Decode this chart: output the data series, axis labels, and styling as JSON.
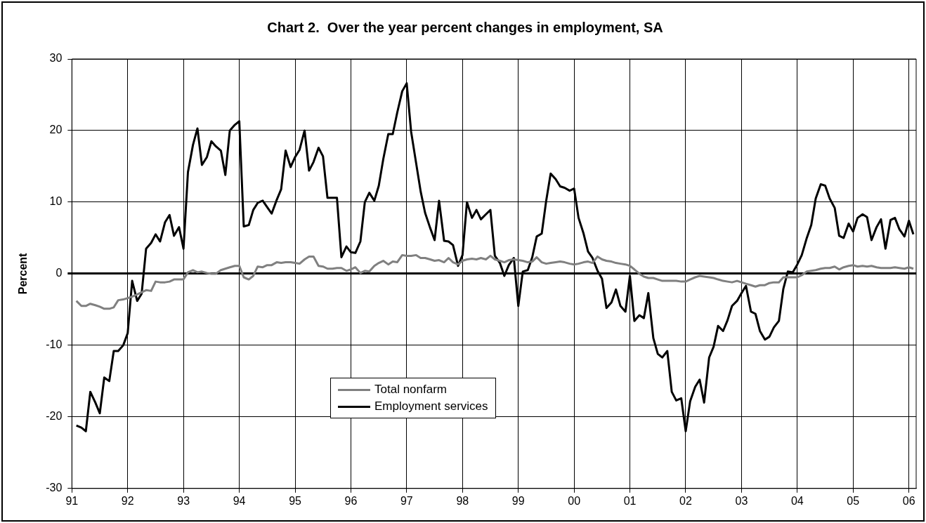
{
  "chart_data": {
    "type": "line",
    "title": "Chart 2.  Over the year percent changes in employment, SA",
    "ylabel": "Percent",
    "x": [
      1991.08,
      1991.17,
      1991.25,
      1991.33,
      1991.42,
      1991.5,
      1991.58,
      1991.67,
      1991.75,
      1991.83,
      1991.92,
      1992,
      1992.08,
      1992.17,
      1992.25,
      1992.33,
      1992.42,
      1992.5,
      1992.58,
      1992.67,
      1992.75,
      1992.83,
      1992.92,
      1993,
      1993.08,
      1993.17,
      1993.25,
      1993.33,
      1993.42,
      1993.5,
      1993.58,
      1993.67,
      1993.75,
      1993.83,
      1993.92,
      1994,
      1994.08,
      1994.17,
      1994.25,
      1994.33,
      1994.42,
      1994.5,
      1994.58,
      1994.67,
      1994.75,
      1994.83,
      1994.92,
      1995,
      1995.08,
      1995.17,
      1995.25,
      1995.33,
      1995.42,
      1995.5,
      1995.58,
      1995.67,
      1995.75,
      1995.83,
      1995.92,
      1996,
      1996.08,
      1996.17,
      1996.25,
      1996.33,
      1996.42,
      1996.5,
      1996.58,
      1996.67,
      1996.75,
      1996.83,
      1996.92,
      1997,
      1997.08,
      1997.17,
      1997.25,
      1997.33,
      1997.42,
      1997.5,
      1997.58,
      1997.67,
      1997.75,
      1997.83,
      1997.92,
      1998,
      1998.08,
      1998.17,
      1998.25,
      1998.33,
      1998.42,
      1998.5,
      1998.58,
      1998.67,
      1998.75,
      1998.83,
      1998.92,
      1999,
      1999.08,
      1999.17,
      1999.25,
      1999.33,
      1999.42,
      1999.5,
      1999.58,
      1999.67,
      1999.75,
      1999.83,
      1999.92,
      2000,
      2000.08,
      2000.17,
      2000.25,
      2000.33,
      2000.42,
      2000.5,
      2000.58,
      2000.67,
      2000.75,
      2000.83,
      2000.92,
      2001,
      2001.08,
      2001.17,
      2001.25,
      2001.33,
      2001.42,
      2001.5,
      2001.58,
      2001.67,
      2001.75,
      2001.83,
      2001.92,
      2002,
      2002.08,
      2002.17,
      2002.25,
      2002.33,
      2002.42,
      2002.5,
      2002.58,
      2002.67,
      2002.75,
      2002.83,
      2002.92,
      2003,
      2003.08,
      2003.17,
      2003.25,
      2003.33,
      2003.42,
      2003.5,
      2003.58,
      2003.67,
      2003.75,
      2003.83,
      2003.92,
      2004,
      2004.08,
      2004.17,
      2004.25,
      2004.33,
      2004.42,
      2004.5,
      2004.58,
      2004.67,
      2004.75,
      2004.83,
      2004.92,
      2005,
      2005.08,
      2005.17,
      2005.25,
      2005.33,
      2005.42,
      2005.5,
      2005.58,
      2005.67,
      2005.75,
      2005.83,
      2005.92,
      2006,
      2006.08
    ],
    "series": [
      {
        "name": "Total nonfarm",
        "color": "#808080",
        "values": [
          -3.8,
          -4.5,
          -4.5,
          -4.2,
          -4.4,
          -4.6,
          -4.9,
          -4.9,
          -4.7,
          -3.7,
          -3.6,
          -3.4,
          -3.2,
          -2.9,
          -2.6,
          -2.3,
          -2.4,
          -1.1,
          -1.2,
          -1.2,
          -1.1,
          -0.8,
          -0.8,
          -0.8,
          0.2,
          0.5,
          0.2,
          0.3,
          0.1,
          0,
          0,
          0.5,
          0.7,
          0.9,
          1.1,
          1.1,
          -0.5,
          -0.8,
          -0.3,
          1,
          0.9,
          1.2,
          1.2,
          1.6,
          1.5,
          1.6,
          1.6,
          1.5,
          1.4,
          2,
          2.4,
          2.4,
          1.1,
          1,
          0.7,
          0.7,
          0.8,
          0.8,
          0.4,
          0.6,
          0.9,
          0.1,
          0.4,
          0.3,
          1.1,
          1.5,
          1.8,
          1.3,
          1.7,
          1.6,
          2.6,
          2.5,
          2.5,
          2.6,
          2.2,
          2.2,
          2,
          1.8,
          1.9,
          1.6,
          2.2,
          1.6,
          1.3,
          1.8,
          2,
          2.1,
          2,
          2.2,
          2,
          2.5,
          2,
          1.8,
          1.6,
          1.9,
          2,
          1.9,
          1.8,
          1.6,
          1.7,
          2.3,
          1.6,
          1.4,
          1.5,
          1.6,
          1.7,
          1.6,
          1.4,
          1.3,
          1.4,
          1.6,
          1.7,
          1.5,
          2.4,
          2,
          1.8,
          1.7,
          1.5,
          1.4,
          1.3,
          1.1,
          0.6,
          0,
          -0.4,
          -0.6,
          -0.6,
          -0.8,
          -1,
          -1,
          -1,
          -1,
          -1.1,
          -1.1,
          -0.8,
          -0.5,
          -0.3,
          -0.4,
          -0.5,
          -0.6,
          -0.8,
          -1,
          -1.1,
          -1.2,
          -1,
          -1.2,
          -1.4,
          -1.6,
          -1.8,
          -1.6,
          -1.6,
          -1.3,
          -1.2,
          -1.2,
          -0.5,
          -0.5,
          -0.5,
          -0.5,
          -0.2,
          0.3,
          0.4,
          0.5,
          0.7,
          0.8,
          0.8,
          1,
          0.6,
          0.9,
          1.1,
          1.2,
          1,
          1.1,
          1,
          1.1,
          0.9,
          0.8,
          0.8,
          0.8,
          0.9,
          0.8,
          0.7,
          0.9,
          0.7
        ]
      },
      {
        "name": "Employment services",
        "color": "#000000",
        "values": [
          -21.2,
          -21.5,
          -22,
          -16.5,
          -18,
          -19.5,
          -14.5,
          -15,
          -10.8,
          -10.8,
          -10,
          -8.3,
          -1,
          -3.8,
          -2.8,
          3.5,
          4.3,
          5.5,
          4.5,
          7.2,
          8.2,
          5.3,
          6.5,
          3.5,
          14.2,
          18,
          20.3,
          15.2,
          16.3,
          18.5,
          17.8,
          17.2,
          13.8,
          20,
          20.8,
          21.3,
          6.6,
          6.8,
          8.9,
          9.9,
          10.2,
          9.3,
          8.4,
          10.3,
          11.8,
          17.2,
          14.9,
          16.3,
          17.3,
          20,
          14.4,
          15.6,
          17.6,
          16.4,
          10.6,
          10.6,
          10.6,
          2.3,
          3.8,
          3,
          2.9,
          4.5,
          10,
          11.3,
          10.2,
          12.3,
          16,
          19.5,
          19.5,
          22.5,
          25.5,
          26.6,
          19.8,
          15.4,
          11.5,
          8.5,
          6.4,
          4.7,
          10.2,
          4.6,
          4.5,
          4,
          1.1,
          2.6,
          10,
          7.8,
          8.9,
          7.6,
          8.3,
          8.9,
          2.5,
          1.5,
          -0.3,
          1.2,
          2.2,
          -4.5,
          0.3,
          0.5,
          2.3,
          5.2,
          5.6,
          10.2,
          14,
          13.2,
          12.2,
          12,
          11.6,
          11.9,
          7.8,
          5.6,
          3.1,
          2.2,
          0.4,
          -0.7,
          -4.8,
          -4,
          -2.2,
          -4.5,
          -5.3,
          -0.3,
          -6.6,
          -5.8,
          -6.2,
          -2.7,
          -9,
          -11.2,
          -11.7,
          -10.8,
          -16.5,
          -17.7,
          -17.4,
          -22,
          -17.8,
          -15.8,
          -14.8,
          -18,
          -11.7,
          -10.2,
          -7.3,
          -8,
          -6.5,
          -4.5,
          -3.8,
          -2.7,
          -1.7,
          -5.3,
          -5.6,
          -8,
          -9.2,
          -8.8,
          -7.5,
          -6.6,
          -2.1,
          0.3,
          0.2,
          1.3,
          2.6,
          5,
          6.8,
          10.5,
          12.5,
          12.3,
          10.5,
          9.2,
          5.3,
          5,
          7,
          5.9,
          7.8,
          8.3,
          7.9,
          4.7,
          6.5,
          7.6,
          3.5,
          7.5,
          7.8,
          6.2,
          5.2,
          7.4,
          5.5
        ]
      }
    ],
    "xlim": [
      1991,
      2006.13
    ],
    "xticks": [
      {
        "value": 1991,
        "label": "91"
      },
      {
        "value": 1992,
        "label": "92"
      },
      {
        "value": 1993,
        "label": "93"
      },
      {
        "value": 1994,
        "label": "94"
      },
      {
        "value": 1995,
        "label": "95"
      },
      {
        "value": 1996,
        "label": "96"
      },
      {
        "value": 1997,
        "label": "97"
      },
      {
        "value": 1998,
        "label": "98"
      },
      {
        "value": 1999,
        "label": "99"
      },
      {
        "value": 2000,
        "label": "00"
      },
      {
        "value": 2001,
        "label": "01"
      },
      {
        "value": 2002,
        "label": "02"
      },
      {
        "value": 2003,
        "label": "03"
      },
      {
        "value": 2004,
        "label": "04"
      },
      {
        "value": 2005,
        "label": "05"
      },
      {
        "value": 2006,
        "label": "06"
      }
    ],
    "ylim": [
      -30,
      30
    ],
    "yticks": [
      -30,
      -20,
      -10,
      0,
      10,
      20,
      30
    ],
    "grid": true,
    "legend": "bottom",
    "marker": "none",
    "line_style": "solid"
  }
}
